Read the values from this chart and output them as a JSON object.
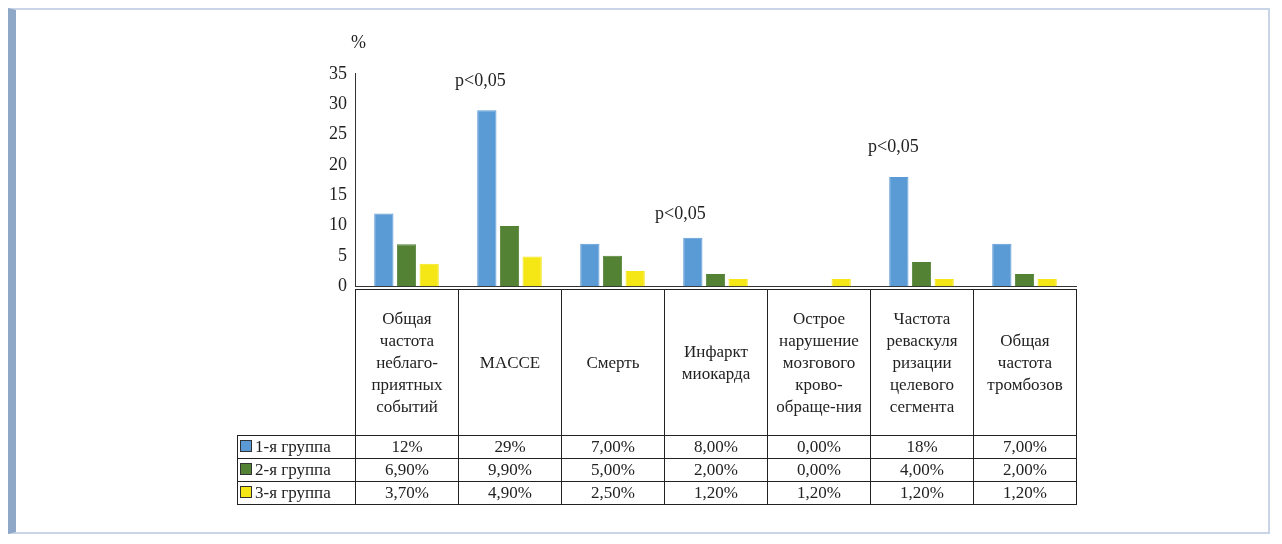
{
  "chart_data": {
    "type": "bar",
    "ylabel": "%",
    "ylim": [
      0,
      35
    ],
    "yticks": [
      0,
      5,
      10,
      15,
      20,
      25,
      30,
      35
    ],
    "grid": false,
    "legend": "bottom",
    "categories": [
      "Общая частота неблаго-приятных событий",
      "MACCE",
      "Смерть",
      "Инфаркт миокарда",
      "Острое нарушение мозгового крово-обраще-ния",
      "Частота реваскуля ризации целевого сегмента",
      "Общая частота тромбозов"
    ],
    "series": [
      {
        "name": "1-я группа",
        "color": "#5b9bd5",
        "values": [
          12,
          29,
          7,
          8,
          0,
          18,
          7
        ],
        "value_labels": [
          "12%",
          "29%",
          "7,00%",
          "8,00%",
          "0,00%",
          "18%",
          "7,00%"
        ]
      },
      {
        "name": "2-я группа",
        "color": "#548235",
        "values": [
          6.9,
          9.9,
          5,
          2,
          0,
          4,
          2
        ],
        "value_labels": [
          "6,90%",
          "9,90%",
          "5,00%",
          "2,00%",
          "0,00%",
          "4,00%",
          "2,00%"
        ]
      },
      {
        "name": "3-я группа",
        "color": "#f5e616",
        "values": [
          3.7,
          4.9,
          2.5,
          1.2,
          1.2,
          1.2,
          1.2
        ],
        "value_labels": [
          "3,70%",
          "4,90%",
          "2,50%",
          "1,20%",
          "1,20%",
          "1,20%",
          "1,20%"
        ]
      }
    ],
    "annotations": [
      "p<0,05",
      "p<0,05",
      "p<0,05"
    ]
  }
}
